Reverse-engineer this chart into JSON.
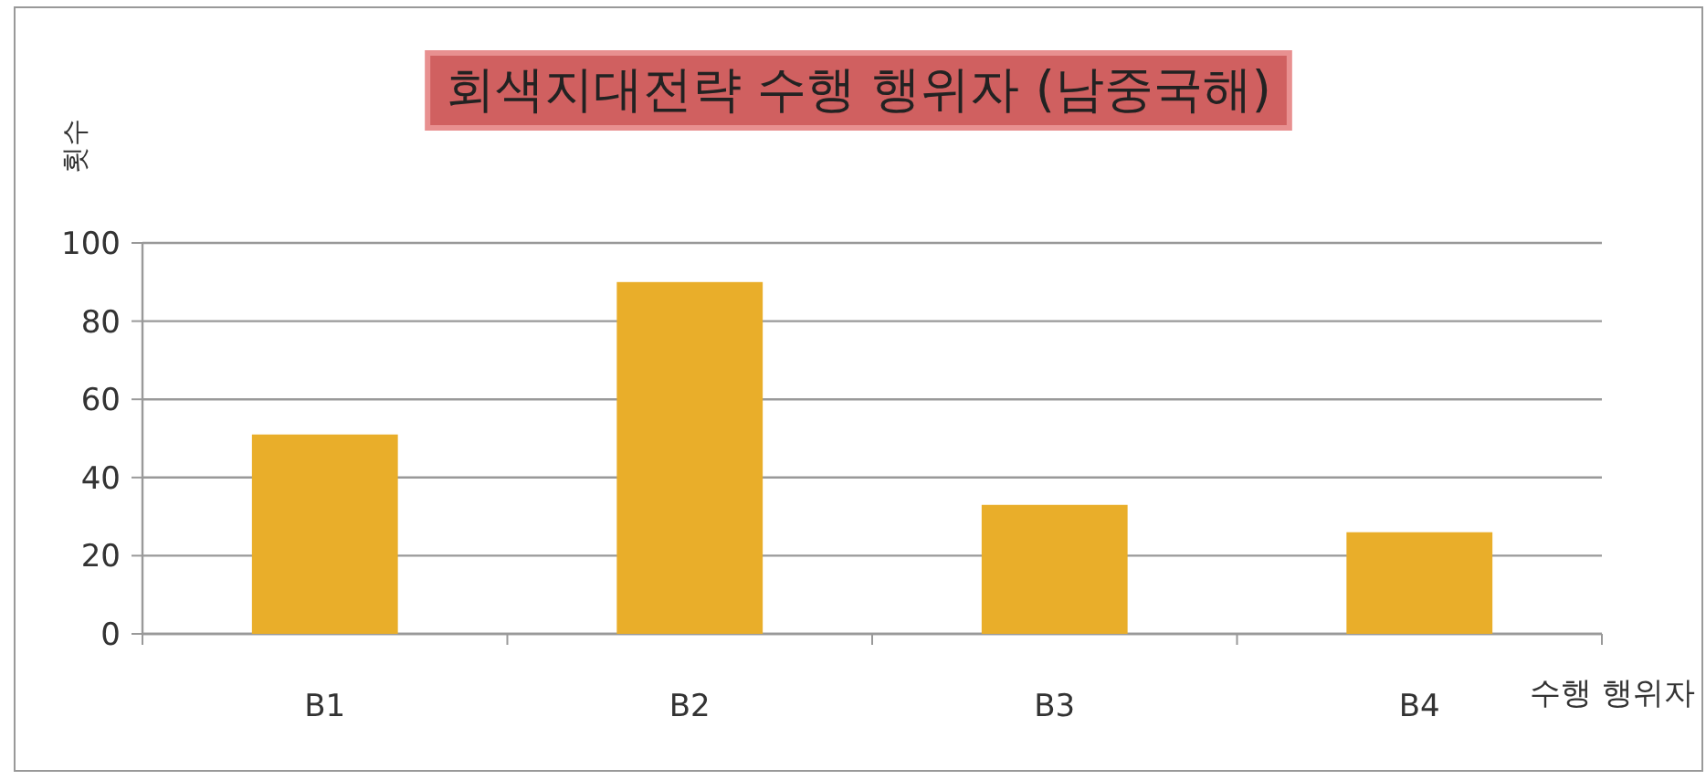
{
  "chart_data": {
    "type": "bar",
    "title": "회색지대전략 수행 행위자 (남중국해)",
    "xlabel": "수행 행위자",
    "ylabel": "횟수",
    "categories": [
      "B1",
      "B2",
      "B3",
      "B4"
    ],
    "values": [
      51,
      90,
      33,
      26
    ],
    "color": "#e9ae2a",
    "ylim": [
      0,
      100
    ],
    "yticks": [
      0,
      20,
      40,
      60,
      80,
      100
    ],
    "grid": "y"
  }
}
